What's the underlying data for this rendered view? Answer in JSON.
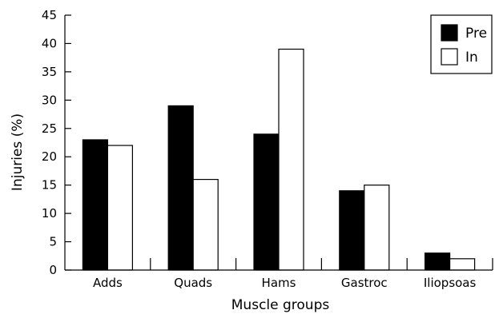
{
  "chart_data": {
    "type": "bar",
    "title": "",
    "xlabel": "Muscle groups",
    "ylabel": "Injuries (%)",
    "categories": [
      "Adds",
      "Quads",
      "Hams",
      "Gastroc",
      "Iliopsoas"
    ],
    "series": [
      {
        "name": "Pre",
        "values": [
          23,
          29,
          24,
          14,
          3
        ],
        "color": "#000000"
      },
      {
        "name": "In",
        "values": [
          22,
          16,
          39,
          15,
          2
        ],
        "color": "#ffffff"
      }
    ],
    "ylim": [
      0,
      45
    ],
    "yticks": [
      0,
      5,
      10,
      15,
      20,
      25,
      30,
      35,
      40,
      45
    ],
    "grid": false,
    "legend_position": "top-right"
  }
}
